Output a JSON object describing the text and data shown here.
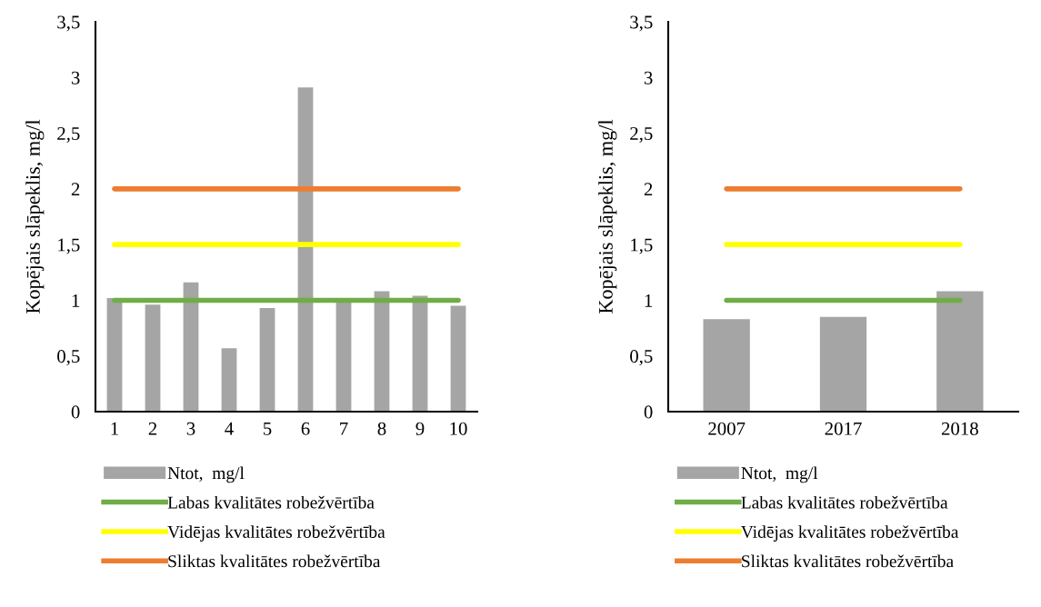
{
  "chart_data": [
    {
      "type": "bar",
      "ylabel": "Kopējais slāpeklis, mg/l",
      "categories": [
        "1",
        "2",
        "3",
        "4",
        "5",
        "6",
        "7",
        "8",
        "9",
        "10"
      ],
      "ylim": [
        0,
        3.5
      ],
      "yticks": [
        0,
        {
          "value": 0.5,
          "label": "0,5"
        },
        1,
        {
          "value": 1.5,
          "label": "1,5"
        },
        2,
        {
          "value": 2.5,
          "label": "2,5"
        },
        3,
        {
          "value": 3.5,
          "label": "3,5"
        }
      ],
      "grid": false,
      "legend": "bottom",
      "series": [
        {
          "name": "Ntot,  mg/l",
          "color": "#a5a5a5",
          "values": [
            1.02,
            0.96,
            1.16,
            0.57,
            0.93,
            2.91,
            1.0,
            1.08,
            1.04,
            0.95
          ]
        },
        {
          "name": "Labas kvalitātes robežvērtība",
          "type": "line",
          "color": "#70ad47",
          "values": [
            1,
            1,
            1,
            1,
            1,
            1,
            1,
            1,
            1,
            1
          ]
        },
        {
          "name": "Vidējas kvalitātes robežvērtība",
          "type": "line",
          "color": "#ffff00",
          "values": [
            1.5,
            1.5,
            1.5,
            1.5,
            1.5,
            1.5,
            1.5,
            1.5,
            1.5,
            1.5
          ]
        },
        {
          "name": "Sliktas kvalitātes robežvērtība",
          "type": "line",
          "color": "#ed7d31",
          "values": [
            2,
            2,
            2,
            2,
            2,
            2,
            2,
            2,
            2,
            2
          ]
        }
      ]
    },
    {
      "type": "bar",
      "ylabel": "Kopējais slāpeklis, mg/l",
      "categories": [
        "2007",
        "2017",
        "2018"
      ],
      "ylim": [
        0,
        3.5
      ],
      "yticks": [
        0,
        {
          "value": 0.5,
          "label": "0,5"
        },
        1,
        {
          "value": 1.5,
          "label": "1,5"
        },
        2,
        {
          "value": 2.5,
          "label": "2,5"
        },
        3,
        {
          "value": 3.5,
          "label": "3,5"
        }
      ],
      "grid": false,
      "legend": "bottom",
      "series": [
        {
          "name": "Ntot,  mg/l",
          "color": "#a5a5a5",
          "values": [
            0.83,
            0.85,
            1.08
          ]
        },
        {
          "name": "Labas kvalitātes robežvērtība",
          "type": "line",
          "color": "#70ad47",
          "values": [
            1,
            1,
            1
          ]
        },
        {
          "name": "Vidējas kvalitātes robežvērtība",
          "type": "line",
          "color": "#ffff00",
          "values": [
            1.5,
            1.5,
            1.5
          ]
        },
        {
          "name": "Sliktas kvalitātes robežvērtība",
          "type": "line",
          "color": "#ed7d31",
          "values": [
            2,
            2,
            2
          ]
        }
      ]
    }
  ]
}
